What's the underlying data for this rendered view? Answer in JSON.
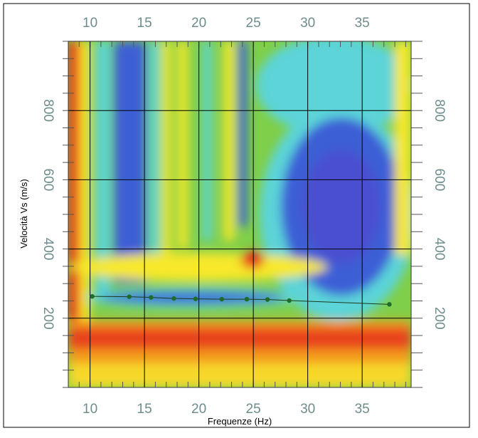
{
  "chart_data": {
    "type": "scatter",
    "x_label": "Frequenze (Hz)",
    "y_label": "Velocità Vs (m/s)",
    "x": [
      10.2,
      13.6,
      15.6,
      17.7,
      19.7,
      22.1,
      24.4,
      26.3,
      28.3,
      37.5
    ],
    "values": [
      263,
      262,
      260,
      257,
      256,
      255,
      255,
      254,
      251,
      240
    ],
    "color": "#1f6b2a",
    "xlim": [
      8,
      39.5
    ],
    "ylim": [
      0,
      1000
    ],
    "xticks": [
      10,
      15,
      20,
      25,
      30,
      35
    ],
    "yticks": [
      200,
      400,
      600,
      800
    ],
    "grid": true
  }
}
